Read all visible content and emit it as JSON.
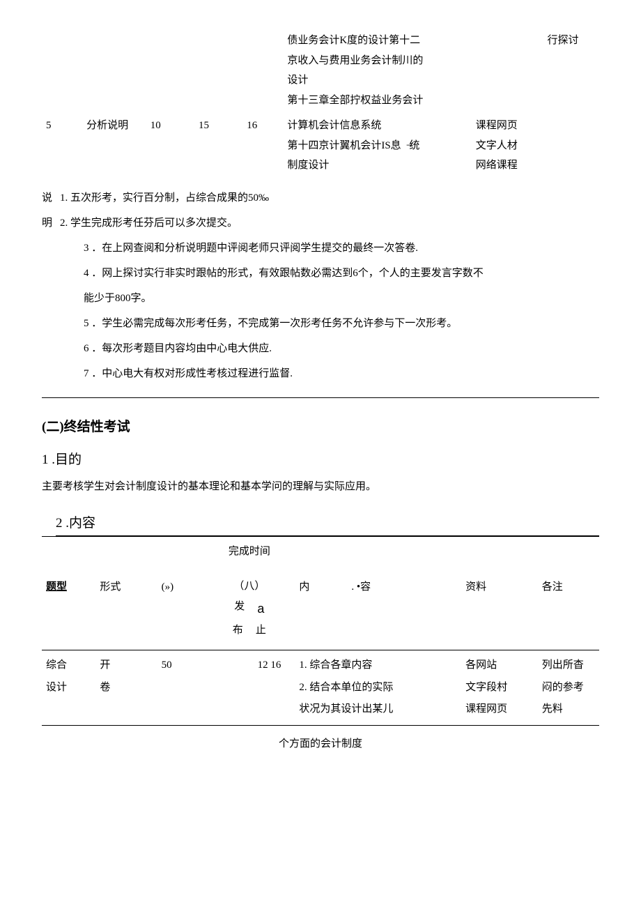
{
  "table1": {
    "row1": {
      "c1_l1": "债业务会计K度的设计第十二",
      "c1_l2": "京收入与费用业务会计制川的",
      "c1_l3": "设计",
      "c1_l4": "第十三章全部拧权益业务会计",
      "note": "行探讨"
    },
    "row2": {
      "num": "5",
      "type": "分析说明",
      "n1": "10",
      "n2": "15",
      "n3": "16",
      "c_l1": "计算机会计信息系统",
      "c_l2": "第十四京计翼机会计IS息乔̶统",
      "c_l3": "制度设计",
      "r_l1": "课程网页",
      "r_l2": "文字人材",
      "r_l3": "网络课程"
    }
  },
  "notes": {
    "lbl1": "说",
    "lbl2": "明",
    "n1": "1. 五次形考，实行百分制，占综合成果的50‰",
    "n2": "2. 学生完成形考任芬后可以多次提交。",
    "n3": "3 ．在上网查阅和分析说明题中评阅老师只评阅学生提交的最终一次答卷.",
    "n4a": "4 ．网上探讨实行非实时跟帖的形式，有效跟帖数必需达到6个，个人的主要发言字数不",
    "n4b": "能少于800字。",
    "n5": "5 ．学生必需完成每次形考任务，不完成第一次形考任务不允许参与下一次形考。",
    "n6": "6 ．每次形考题目内容均由中心电大供应.",
    "n7": "7 ．中心电大有权对形成性考核过程进行监督."
  },
  "sec2": {
    "title": "(二)终结性考试",
    "s1_title": "1 .目的",
    "s1_body": "主要考核学生对会计制度设计的基本理论和基本学问的理解与实际应用。",
    "s2_title": "2 .内容"
  },
  "table2": {
    "head": {
      "type": "题型",
      "form": "形式",
      "pct": "(»)",
      "time_top": "完成时间",
      "time_sub": "（八）",
      "time_l1a": "发",
      "time_l1b": "a",
      "time_l2a": "布",
      "time_l2b": "止",
      "cont_a": "内",
      "cont_b": ". •容",
      "res": "资料",
      "note": "各注"
    },
    "row": {
      "type_l1": "综合",
      "type_l2": "设计",
      "form_l1": "开",
      "form_l2": "卷",
      "pct": "50",
      "time": "12 16",
      "c_l1": "1. 综合各章内容",
      "c_l2": "2. 结合本单位的实际",
      "c_l3": "状况为其设计出某儿",
      "r_l1": "各网站",
      "r_l2": "文字段村",
      "r_l3": "课程网页",
      "n_l1": "列出所杳",
      "n_l2": "闷的参考",
      "n_l3": "先料"
    },
    "below": "个方面的会计制度"
  }
}
